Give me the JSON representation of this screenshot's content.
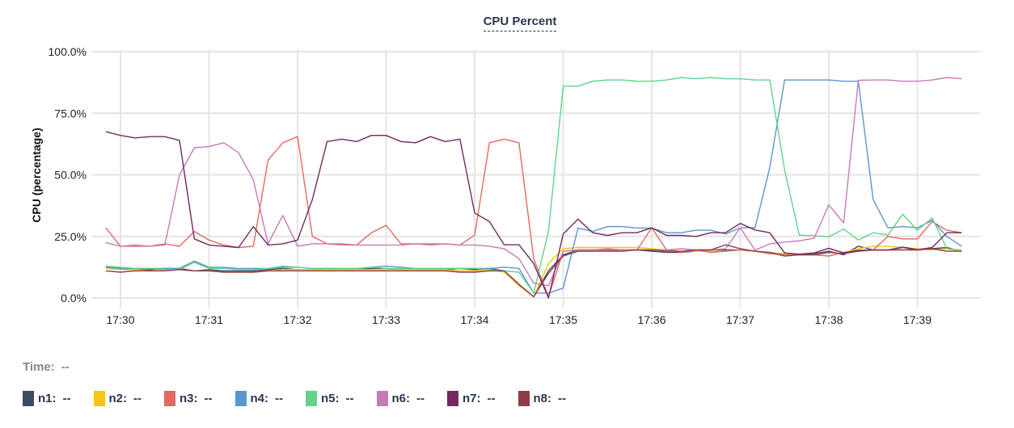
{
  "chart_data": {
    "type": "line",
    "title": "CPU Percent",
    "ylabel": "CPU (percentage)",
    "xlabel": "",
    "ylim": [
      0,
      100
    ],
    "y_ticks": [
      "0.0%",
      "25.0%",
      "50.0%",
      "75.0%",
      "100.0%"
    ],
    "x_ticks": [
      "17:30",
      "17:31",
      "17:32",
      "17:33",
      "17:34",
      "17:35",
      "17:36",
      "17:37",
      "17:38",
      "17:39"
    ],
    "x_start": "17:29:50",
    "x_step_seconds": 10,
    "grid": true,
    "series": [
      {
        "name": "n1",
        "color": "#3d4a63",
        "values": [
          12.5,
          12,
          11.5,
          11.5,
          12,
          12,
          11,
          11.5,
          11,
          11,
          11,
          11.5,
          12,
          11.5,
          11.5,
          12,
          11.5,
          11.5,
          12,
          12,
          11.5,
          11.5,
          11.5,
          11.5,
          12,
          11.5,
          12,
          11,
          5.5,
          0.5,
          11,
          17.5,
          19.5,
          19.5,
          19.5,
          19.5,
          19.5,
          19,
          18.5,
          18.5,
          19,
          19.5,
          19.5,
          19.5,
          19,
          18,
          18,
          17.5,
          18,
          19,
          17.5,
          21,
          19.5,
          19.5,
          20.5,
          19.5,
          20,
          20.5,
          19
        ]
      },
      {
        "name": "n2",
        "color": "#f5c518",
        "values": [
          12,
          11.5,
          11.5,
          11,
          11.5,
          11.5,
          11,
          11,
          10.5,
          10.5,
          10.5,
          11,
          11.5,
          11.5,
          11.5,
          11.5,
          11.5,
          11.5,
          11.5,
          11.5,
          11.5,
          11.5,
          11.5,
          11.5,
          11,
          11,
          11.5,
          10.5,
          5,
          0.5,
          14,
          20,
          20.5,
          20.5,
          20.5,
          20.5,
          20.5,
          20,
          19.5,
          19,
          19,
          19,
          19,
          19.5,
          19,
          18.5,
          18,
          17.5,
          17.5,
          17,
          18.5,
          20,
          21,
          21,
          20.5,
          20,
          19.5,
          20,
          19.5
        ]
      },
      {
        "name": "n3",
        "color": "#e06a5f",
        "values": [
          28.5,
          21,
          21,
          21,
          22,
          21,
          27,
          23.5,
          21.5,
          20.5,
          21,
          56,
          63,
          65.5,
          25,
          22,
          22,
          21.5,
          26.5,
          29.5,
          22,
          22,
          22,
          22,
          21.5,
          25.5,
          63,
          64.5,
          63,
          16,
          0.5,
          19,
          19.5,
          19.5,
          19.5,
          19.5,
          19.5,
          28.5,
          19.5,
          18.5,
          19.5,
          18.5,
          19,
          19.5,
          19,
          18,
          17.5,
          17.5,
          17.5,
          17,
          18.5,
          19,
          19.5,
          25,
          24,
          24,
          31,
          27.5,
          26.5
        ]
      },
      {
        "name": "n4",
        "color": "#5a96d0",
        "values": [
          12.5,
          12,
          12,
          12,
          12,
          12,
          15,
          12.5,
          12.5,
          12,
          12,
          12,
          12.5,
          12.5,
          12,
          12,
          12,
          12,
          12.5,
          13,
          12.5,
          12,
          12,
          12,
          12,
          12,
          12,
          12.5,
          12,
          2,
          2,
          4,
          28.4,
          27,
          29,
          29,
          28.4,
          28.4,
          26.5,
          26.5,
          27.5,
          27.5,
          26,
          28.5,
          28.5,
          53,
          88.5,
          88.5,
          88.5,
          88.5,
          88,
          88,
          40,
          28.5,
          29,
          28.5,
          31.5,
          25,
          21
        ]
      },
      {
        "name": "n5",
        "color": "#63d28a",
        "values": [
          13,
          12.5,
          12,
          12,
          11.5,
          11.5,
          14.5,
          12,
          12,
          11.5,
          11.5,
          12,
          13,
          12.5,
          12,
          12,
          12,
          12,
          12.5,
          12,
          12,
          12,
          12,
          12,
          12,
          12,
          11.5,
          11,
          10.5,
          2,
          27,
          86,
          86,
          88,
          88.5,
          88.5,
          88,
          88,
          88.5,
          89.5,
          89,
          89.5,
          89,
          89,
          88.5,
          88.5,
          52,
          25.5,
          25.3,
          24.8,
          28,
          23.5,
          26.5,
          25.5,
          34,
          27.5,
          32.5,
          20,
          19
        ]
      },
      {
        "name": "n6",
        "color": "#c87ab8",
        "values": [
          22.5,
          21,
          21.5,
          21,
          21.5,
          50,
          61,
          61.5,
          63,
          59,
          48,
          22,
          33.5,
          21,
          22,
          22,
          21.5,
          21.5,
          21.5,
          21.5,
          21.5,
          22,
          21.5,
          22,
          21.5,
          21.5,
          21,
          20,
          16,
          6,
          5,
          19,
          19.5,
          19.5,
          20,
          19.5,
          19.5,
          19.5,
          19.5,
          20,
          19.5,
          19.5,
          20,
          28.5,
          19.4,
          22,
          22.7,
          23.2,
          24.3,
          37.8,
          30.5,
          88.4,
          88.5,
          88.5,
          88,
          88,
          88.5,
          89.5,
          89
        ]
      },
      {
        "name": "n7",
        "color": "#722a60",
        "values": [
          67.5,
          66,
          65,
          65.5,
          65.5,
          64,
          24,
          21.5,
          21,
          20.5,
          29,
          21.5,
          22,
          23.5,
          40,
          63.5,
          64.5,
          63.5,
          66,
          66,
          63.5,
          63,
          65.5,
          63.5,
          64.5,
          34.5,
          31,
          21.6,
          21.6,
          14,
          0,
          26,
          32,
          26.5,
          25.4,
          26.5,
          26.5,
          28.5,
          25.4,
          25.4,
          25,
          26.5,
          26.5,
          30.3,
          27.6,
          26.5,
          18.3,
          17.8,
          18.3,
          20.2,
          18.3,
          19.4,
          19.4,
          19.4,
          20.7,
          19.6,
          20.5,
          26.5,
          26.5
        ]
      },
      {
        "name": "n8",
        "color": "#8e3b4c",
        "values": [
          11,
          10.5,
          11,
          11,
          11,
          11.5,
          11,
          11,
          10.5,
          10.5,
          10.5,
          11,
          11,
          11,
          11,
          11,
          11,
          11,
          11,
          11,
          11,
          11,
          11,
          11,
          10.5,
          10.5,
          11,
          11,
          5.5,
          0.5,
          10,
          17,
          19,
          19,
          19,
          19,
          19.5,
          19.5,
          19,
          19,
          19.5,
          19.5,
          21.6,
          20,
          19,
          18.5,
          17,
          17.5,
          17.5,
          18.5,
          18,
          19,
          19.5,
          19.5,
          19.5,
          19.5,
          20,
          19,
          19
        ]
      }
    ]
  },
  "hover": {
    "time_label": "Time:",
    "time_value": "--"
  },
  "legend_value": "--"
}
